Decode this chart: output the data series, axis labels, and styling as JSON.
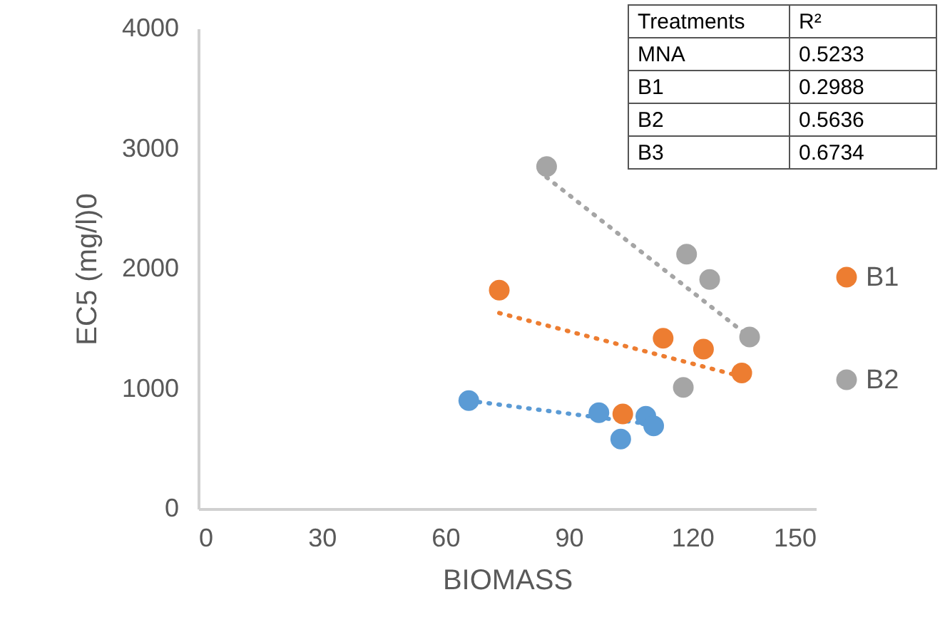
{
  "chart_data": {
    "type": "scatter",
    "xlabel": "BIOMASS",
    "ylabel": "EC5 (mg/l)0",
    "xlim": [
      0,
      150
    ],
    "xticks": [
      0,
      30,
      60,
      90,
      120,
      150
    ],
    "ylim": [
      0,
      4000
    ],
    "yticks": [
      0,
      1000,
      2000,
      3000,
      4000
    ],
    "grid": false,
    "legend": "right",
    "marker": "circle",
    "series": [
      {
        "color": "#5b9bd5",
        "x": [
          65.7,
          97.3,
          102.6,
          108.7,
          110.6
        ],
        "values": [
          900,
          800,
          580,
          770,
          690
        ]
      },
      {
        "name": "B1",
        "color": "#ed7d31",
        "x": [
          73.1,
          112.9,
          122.7,
          132,
          103.1
        ],
        "values": [
          1820,
          1420,
          1330,
          1130,
          790
        ]
      },
      {
        "name": "B2",
        "color": "#a5a5a5",
        "x": [
          84.6,
          118.6,
          124.2,
          133.9,
          117.8
        ],
        "values": [
          2850,
          2120,
          1910,
          1430,
          1010
        ]
      },
      {
        "type": "line",
        "marker": "none",
        "line_style": "dotted",
        "color": "#5b9bd5",
        "x": [
          65.7,
          110.6
        ],
        "values": [
          900,
          700
        ]
      },
      {
        "type": "line",
        "marker": "none",
        "line_style": "dotted",
        "color": "#ed7d31",
        "x": [
          73.1,
          132
        ],
        "values": [
          1630,
          1100
        ]
      },
      {
        "type": "line",
        "marker": "none",
        "line_style": "dotted",
        "color": "#a5a5a5",
        "x": [
          84.6,
          133.9
        ],
        "values": [
          2760,
          1430
        ]
      }
    ],
    "annotations": [
      "Treatments",
      "R²",
      "MNA",
      "0.5233",
      "B1",
      "0.2988",
      "B2",
      "0.5636",
      "B3",
      "0.6734"
    ]
  }
}
